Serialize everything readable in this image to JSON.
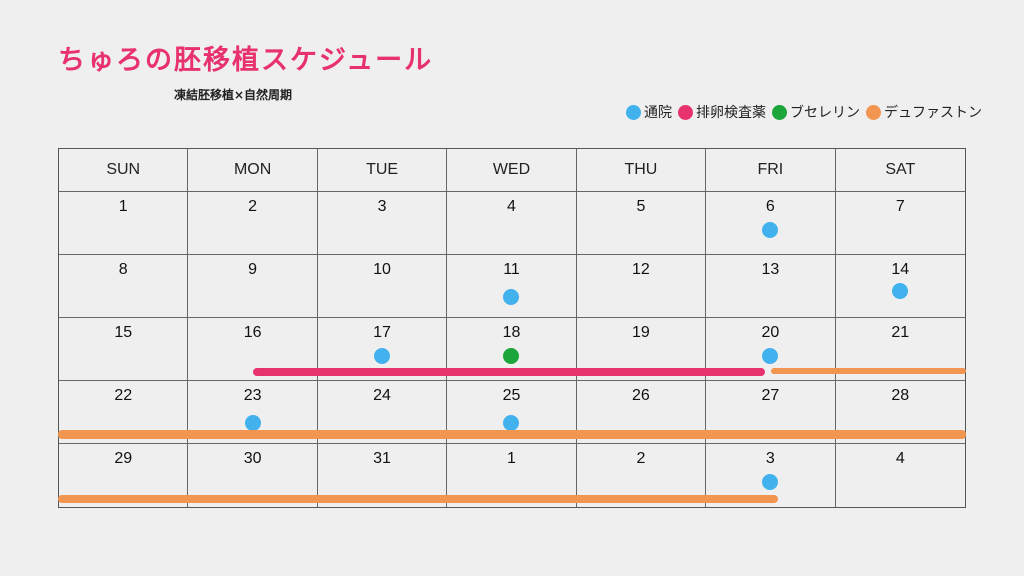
{
  "title": "ちゅろの胚移植スケジュール",
  "subtitle": "凍結胚移植×自然周期",
  "colors": {
    "blue": "#42b2ee",
    "pink": "#e8326e",
    "green": "#1ca53a",
    "orange": "#f29551"
  },
  "legend": [
    {
      "label": "通院",
      "color": "#42b2ee"
    },
    {
      "label": "排卵検査薬",
      "color": "#e8326e"
    },
    {
      "label": "ブセレリン",
      "color": "#1ca53a"
    },
    {
      "label": "デュファストン",
      "color": "#f29551"
    }
  ],
  "weekdays": [
    "SUN",
    "MON",
    "TUE",
    "WED",
    "THU",
    "FRI",
    "SAT"
  ],
  "weeks": [
    [
      "1",
      "2",
      "3",
      "4",
      "5",
      "6",
      "7"
    ],
    [
      "8",
      "9",
      "10",
      "11",
      "12",
      "13",
      "14"
    ],
    [
      "15",
      "16",
      "17",
      "18",
      "19",
      "20",
      "21"
    ],
    [
      "22",
      "23",
      "24",
      "25",
      "26",
      "27",
      "28"
    ],
    [
      "29",
      "30",
      "31",
      "1",
      "2",
      "3",
      "4"
    ]
  ],
  "markers": [
    {
      "week": 0,
      "day": 5,
      "type": "通院"
    },
    {
      "week": 1,
      "day": 3,
      "type": "通院"
    },
    {
      "week": 1,
      "day": 6,
      "type": "通院"
    },
    {
      "week": 2,
      "day": 2,
      "type": "通院"
    },
    {
      "week": 2,
      "day": 3,
      "type": "ブセレリン"
    },
    {
      "week": 2,
      "day": 5,
      "type": "通院"
    },
    {
      "week": 3,
      "day": 1,
      "type": "通院"
    },
    {
      "week": 3,
      "day": 3,
      "type": "通院"
    },
    {
      "week": 4,
      "day": 5,
      "type": "通院"
    }
  ],
  "ranges": [
    {
      "type": "排卵検査薬",
      "week": 2,
      "from": "16",
      "to": "20"
    },
    {
      "type": "デュファストン",
      "week": 2,
      "from": "20",
      "to": "21"
    },
    {
      "type": "デュファストン",
      "week": 3,
      "from": "22",
      "to": "28"
    },
    {
      "type": "デュファストン",
      "week": 4,
      "from": "29",
      "to": "3"
    }
  ]
}
